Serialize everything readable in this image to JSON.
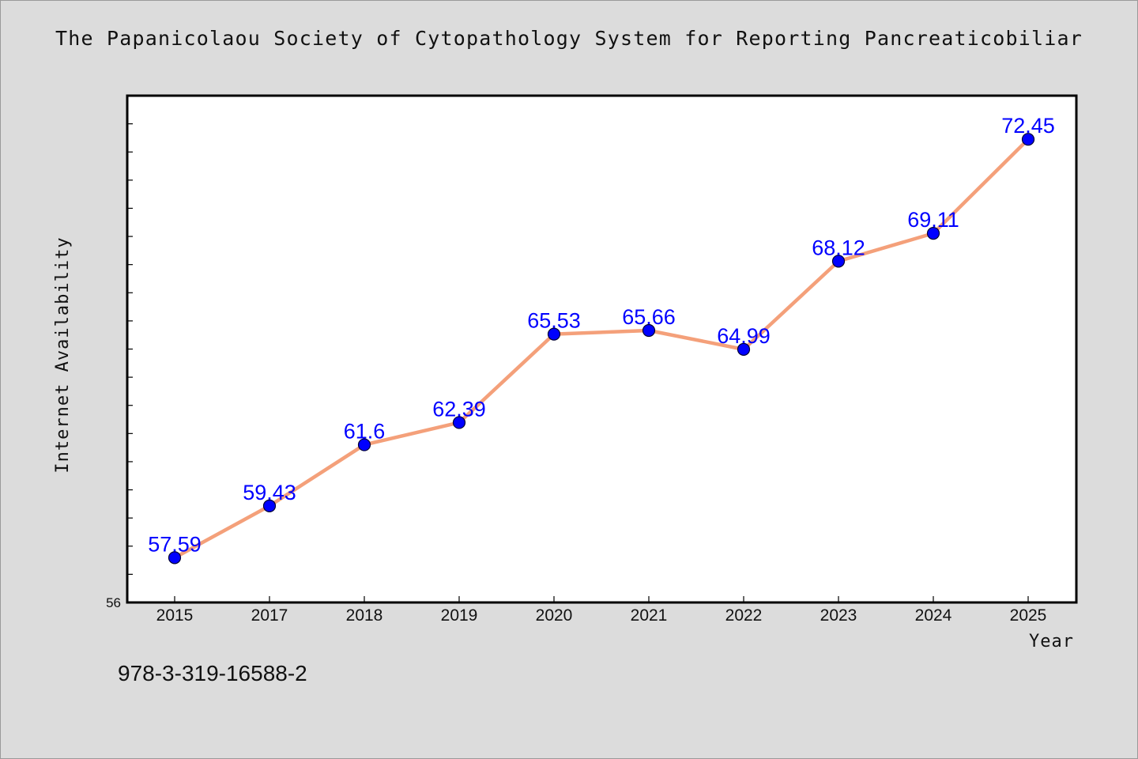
{
  "title": "The Papanicolaou Society of Cytopathology System for Reporting Pancreaticobiliar",
  "footer_text": "978-3-319-16588-2",
  "colors": {
    "background": "#dcdcdc",
    "plot_background": "#ffffff",
    "line": "#f4a07a",
    "marker": "#0000ff",
    "data_label": "#0000ff"
  },
  "chart_data": {
    "type": "line",
    "title": "The Papanicolaou Society of Cytopathology System for Reporting Pancreaticobiliar",
    "xlabel": "Year",
    "ylabel": "Internet Availability",
    "categories": [
      "2015",
      "2017",
      "2018",
      "2019",
      "2020",
      "2021",
      "2022",
      "2023",
      "2024",
      "2025"
    ],
    "series": [
      {
        "values": [
          57.59,
          59.43,
          61.6,
          62.39,
          65.53,
          65.66,
          64.99,
          68.12,
          69.11,
          72.45
        ],
        "labels": [
          "57.59",
          "59.43",
          "61.6",
          "62.39",
          "65.53",
          "65.66",
          "64.99",
          "68.12",
          "69.11",
          "72.45"
        ]
      }
    ],
    "ylim": [
      56,
      74
    ],
    "y_tick_labels": [
      "56"
    ],
    "grid": false,
    "legend": "none"
  }
}
